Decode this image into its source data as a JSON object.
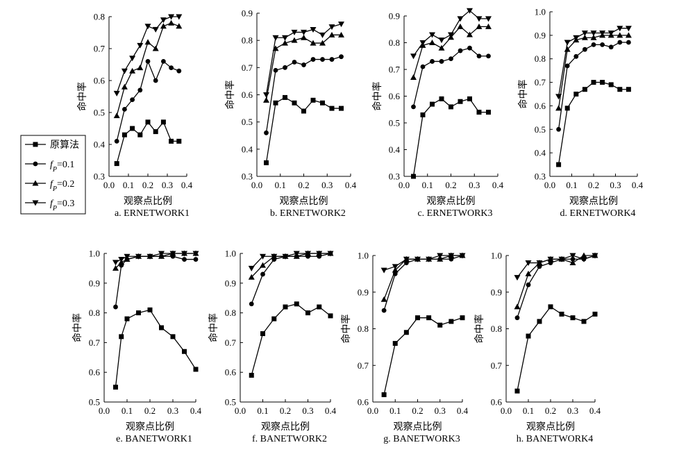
{
  "legend": {
    "entries": [
      {
        "key": "orig",
        "marker": "square",
        "parts": [
          {
            "t": "原算法"
          }
        ]
      },
      {
        "key": "fp01",
        "marker": "circle",
        "parts": [
          {
            "t": "f",
            "i": true
          },
          {
            "t": "P",
            "i": true,
            "sub": true
          },
          {
            "t": "=0.1"
          }
        ]
      },
      {
        "key": "fp02",
        "marker": "triangle-up",
        "parts": [
          {
            "t": "f",
            "i": true
          },
          {
            "t": "P",
            "i": true,
            "sub": true
          },
          {
            "t": "=0.2"
          }
        ]
      },
      {
        "key": "fp03",
        "marker": "triangle-down",
        "parts": [
          {
            "t": "f",
            "i": true
          },
          {
            "t": "P",
            "i": true,
            "sub": true
          },
          {
            "t": "=0.3"
          }
        ]
      }
    ]
  },
  "chart_data": [
    {
      "type": "line",
      "caption": "a. ERNETWORK1",
      "xlabel": "观察点比例",
      "ylabel": "命中率",
      "xlim": [
        0.0,
        0.4
      ],
      "ylim": [
        0.3,
        0.8
      ],
      "x_ticks": [
        "0.0",
        "0.1",
        "0.2",
        "0.3",
        "0.4"
      ],
      "y_ticks": [
        "0.3",
        "0.4",
        "0.5",
        "0.6",
        "0.7",
        "0.8"
      ],
      "x": [
        0.04,
        0.08,
        0.12,
        0.16,
        0.2,
        0.24,
        0.28,
        0.32,
        0.36
      ],
      "series": [
        {
          "key": "orig",
          "values": [
            0.34,
            0.43,
            0.45,
            0.43,
            0.47,
            0.44,
            0.47,
            0.41,
            0.41
          ]
        },
        {
          "key": "fp01",
          "values": [
            0.41,
            0.51,
            0.54,
            0.57,
            0.66,
            0.6,
            0.66,
            0.64,
            0.63
          ]
        },
        {
          "key": "fp02",
          "values": [
            0.49,
            0.58,
            0.63,
            0.64,
            0.72,
            0.7,
            0.77,
            0.78,
            0.77
          ]
        },
        {
          "key": "fp03",
          "values": [
            0.56,
            0.63,
            0.67,
            0.71,
            0.77,
            0.76,
            0.79,
            0.8,
            0.8
          ]
        }
      ]
    },
    {
      "type": "line",
      "caption": "b. ERNETWORK2",
      "xlabel": "观察点比例",
      "ylabel": "命中率",
      "xlim": [
        0.0,
        0.4
      ],
      "ylim": [
        0.3,
        0.9
      ],
      "x_ticks": [
        "0.0",
        "0.1",
        "0.2",
        "0.3",
        "0.4"
      ],
      "y_ticks": [
        "0.3",
        "0.4",
        "0.5",
        "0.6",
        "0.7",
        "0.8",
        "0.9"
      ],
      "x": [
        0.04,
        0.08,
        0.12,
        0.16,
        0.2,
        0.24,
        0.28,
        0.32,
        0.36
      ],
      "series": [
        {
          "key": "orig",
          "values": [
            0.35,
            0.57,
            0.59,
            0.57,
            0.54,
            0.58,
            0.57,
            0.55,
            0.55
          ]
        },
        {
          "key": "fp01",
          "values": [
            0.46,
            0.69,
            0.7,
            0.72,
            0.71,
            0.73,
            0.73,
            0.73,
            0.74
          ]
        },
        {
          "key": "fp02",
          "values": [
            0.58,
            0.77,
            0.79,
            0.8,
            0.81,
            0.79,
            0.79,
            0.82,
            0.82
          ]
        },
        {
          "key": "fp03",
          "values": [
            0.6,
            0.81,
            0.81,
            0.83,
            0.83,
            0.84,
            0.82,
            0.85,
            0.86
          ]
        }
      ]
    },
    {
      "type": "line",
      "caption": "c. ERNETWORK3",
      "xlabel": "观察点比例",
      "ylabel": "命中率",
      "xlim": [
        0.0,
        0.4
      ],
      "ylim": [
        0.3,
        0.9
      ],
      "x_ticks": [
        "0.0",
        "0.1",
        "0.2",
        "0.3",
        "0.4"
      ],
      "y_ticks": [
        "0.3",
        "0.4",
        "0.5",
        "0.6",
        "0.7",
        "0.8",
        "0.9"
      ],
      "x": [
        0.04,
        0.08,
        0.12,
        0.16,
        0.2,
        0.24,
        0.28,
        0.32,
        0.36
      ],
      "series": [
        {
          "key": "orig",
          "values": [
            0.3,
            0.53,
            0.57,
            0.59,
            0.56,
            0.58,
            0.59,
            0.54,
            0.54
          ]
        },
        {
          "key": "fp01",
          "values": [
            0.56,
            0.71,
            0.73,
            0.73,
            0.74,
            0.77,
            0.78,
            0.75,
            0.75
          ]
        },
        {
          "key": "fp02",
          "values": [
            0.67,
            0.79,
            0.8,
            0.78,
            0.82,
            0.86,
            0.83,
            0.86,
            0.86
          ]
        },
        {
          "key": "fp03",
          "values": [
            0.75,
            0.8,
            0.83,
            0.81,
            0.83,
            0.89,
            0.92,
            0.89,
            0.89
          ]
        }
      ]
    },
    {
      "type": "line",
      "caption": "d. ERNETWORK4",
      "xlabel": "观察点比例",
      "ylabel": "命中率",
      "xlim": [
        0.0,
        0.4
      ],
      "ylim": [
        0.3,
        1.0
      ],
      "x_ticks": [
        "0.0",
        "0.1",
        "0.2",
        "0.3",
        "0.4"
      ],
      "y_ticks": [
        "0.3",
        "0.4",
        "0.5",
        "0.6",
        "0.7",
        "0.8",
        "0.9",
        "1.0"
      ],
      "x": [
        0.04,
        0.08,
        0.12,
        0.16,
        0.2,
        0.24,
        0.28,
        0.32,
        0.36
      ],
      "series": [
        {
          "key": "orig",
          "values": [
            0.35,
            0.59,
            0.65,
            0.67,
            0.7,
            0.7,
            0.69,
            0.67,
            0.67
          ]
        },
        {
          "key": "fp01",
          "values": [
            0.5,
            0.77,
            0.81,
            0.84,
            0.86,
            0.86,
            0.85,
            0.87,
            0.87
          ]
        },
        {
          "key": "fp02",
          "values": [
            0.59,
            0.84,
            0.88,
            0.89,
            0.89,
            0.9,
            0.9,
            0.9,
            0.9
          ]
        },
        {
          "key": "fp03",
          "values": [
            0.64,
            0.87,
            0.89,
            0.91,
            0.91,
            0.91,
            0.91,
            0.93,
            0.93
          ]
        }
      ]
    },
    {
      "type": "line",
      "caption": "e. BANETWORK1",
      "xlabel": "观察点比例",
      "ylabel": "命中率",
      "xlim": [
        0.0,
        0.4
      ],
      "ylim": [
        0.5,
        1.0
      ],
      "x_ticks": [
        "0.0",
        "0.1",
        "0.2",
        "0.3",
        "0.4"
      ],
      "y_ticks": [
        "0.5",
        "0.6",
        "0.7",
        "0.8",
        "0.9",
        "1.0"
      ],
      "x": [
        0.05,
        0.075,
        0.1,
        0.15,
        0.2,
        0.25,
        0.3,
        0.35,
        0.4
      ],
      "series": [
        {
          "key": "orig",
          "values": [
            0.55,
            0.72,
            0.78,
            0.8,
            0.81,
            0.75,
            0.72,
            0.67,
            0.61
          ]
        },
        {
          "key": "fp01",
          "values": [
            0.82,
            0.96,
            0.98,
            0.99,
            0.99,
            0.99,
            0.99,
            0.98,
            0.98
          ]
        },
        {
          "key": "fp02",
          "values": [
            0.95,
            0.97,
            0.98,
            0.99,
            0.99,
            0.99,
            1.0,
            1.0,
            1.0
          ]
        },
        {
          "key": "fp03",
          "values": [
            0.97,
            0.98,
            0.99,
            0.99,
            0.99,
            1.0,
            1.0,
            1.0,
            1.0
          ]
        }
      ]
    },
    {
      "type": "line",
      "caption": "f. BANETWORK2",
      "xlabel": "观察点比例",
      "ylabel": "命中率",
      "xlim": [
        0.0,
        0.4
      ],
      "ylim": [
        0.5,
        1.0
      ],
      "x_ticks": [
        "0.0",
        "0.1",
        "0.2",
        "0.3",
        "0.4"
      ],
      "y_ticks": [
        "0.5",
        "0.6",
        "0.7",
        "0.8",
        "0.9",
        "1.0"
      ],
      "x": [
        0.05,
        0.1,
        0.15,
        0.2,
        0.25,
        0.3,
        0.35,
        0.4
      ],
      "series": [
        {
          "key": "orig",
          "values": [
            0.59,
            0.73,
            0.78,
            0.82,
            0.83,
            0.8,
            0.82,
            0.79
          ]
        },
        {
          "key": "fp01",
          "values": [
            0.83,
            0.93,
            0.98,
            0.99,
            0.99,
            0.99,
            0.99,
            1.0
          ]
        },
        {
          "key": "fp02",
          "values": [
            0.92,
            0.96,
            0.99,
            0.99,
            0.99,
            1.0,
            1.0,
            1.0
          ]
        },
        {
          "key": "fp03",
          "values": [
            0.95,
            0.99,
            0.99,
            0.99,
            1.0,
            1.0,
            1.0,
            1.0
          ]
        }
      ]
    },
    {
      "type": "line",
      "caption": "g. BANETWORK3",
      "xlabel": "观察点比例",
      "ylabel": "命中率",
      "xlim": [
        0.0,
        0.4
      ],
      "ylim": [
        0.6,
        1.0
      ],
      "x_ticks": [
        "0.0",
        "0.1",
        "0.2",
        "0.3",
        "0.4"
      ],
      "y_ticks": [
        "0.6",
        "0.7",
        "0.8",
        "0.9",
        "1.0"
      ],
      "x": [
        0.05,
        0.1,
        0.15,
        0.2,
        0.25,
        0.3,
        0.35,
        0.4
      ],
      "series": [
        {
          "key": "orig",
          "values": [
            0.62,
            0.76,
            0.79,
            0.83,
            0.83,
            0.81,
            0.82,
            0.83
          ]
        },
        {
          "key": "fp01",
          "values": [
            0.85,
            0.95,
            0.98,
            0.99,
            0.99,
            0.99,
            0.99,
            1.0
          ]
        },
        {
          "key": "fp02",
          "values": [
            0.88,
            0.96,
            0.99,
            0.99,
            0.99,
            0.99,
            1.0,
            1.0
          ]
        },
        {
          "key": "fp03",
          "values": [
            0.96,
            0.97,
            0.99,
            0.99,
            0.99,
            1.0,
            1.0,
            1.0
          ]
        }
      ]
    },
    {
      "type": "line",
      "caption": "h. BANETWORK4",
      "xlabel": "观察点比例",
      "ylabel": "命中率",
      "xlim": [
        0.0,
        0.4
      ],
      "ylim": [
        0.6,
        1.0
      ],
      "x_ticks": [
        "0.0",
        "0.1",
        "0.2",
        "0.3",
        "0.4"
      ],
      "y_ticks": [
        "0.6",
        "0.7",
        "0.8",
        "0.9",
        "1.0"
      ],
      "x": [
        0.05,
        0.1,
        0.15,
        0.2,
        0.25,
        0.3,
        0.35,
        0.4
      ],
      "series": [
        {
          "key": "orig",
          "values": [
            0.63,
            0.78,
            0.82,
            0.86,
            0.84,
            0.83,
            0.82,
            0.84
          ]
        },
        {
          "key": "fp01",
          "values": [
            0.83,
            0.92,
            0.97,
            0.98,
            0.99,
            0.99,
            0.99,
            1.0
          ]
        },
        {
          "key": "fp02",
          "values": [
            0.86,
            0.95,
            0.98,
            0.99,
            0.99,
            0.98,
            1.0,
            1.0
          ]
        },
        {
          "key": "fp03",
          "values": [
            0.94,
            0.98,
            0.98,
            0.99,
            0.99,
            1.0,
            0.99,
            1.0
          ]
        }
      ]
    }
  ]
}
